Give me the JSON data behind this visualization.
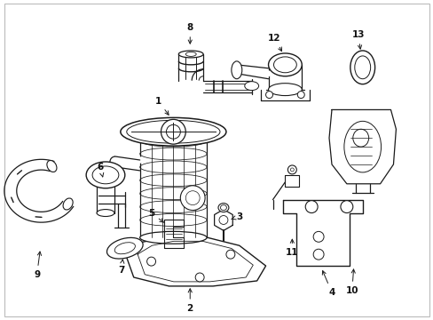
{
  "background_color": "#ffffff",
  "border_color": "#aaaaaa",
  "line_color": "#1a1a1a",
  "label_color": "#111111",
  "fig_width": 4.89,
  "fig_height": 3.6,
  "dpi": 100
}
